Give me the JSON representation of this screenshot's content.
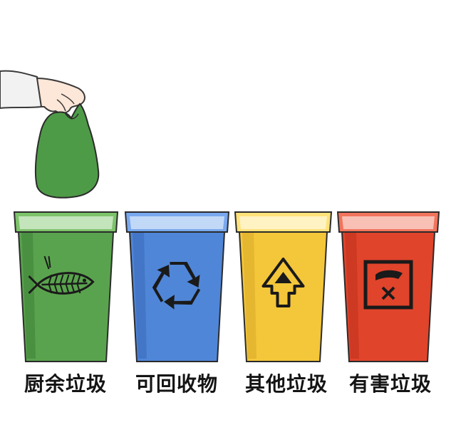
{
  "bins": [
    {
      "id": "kitchen",
      "label": "厨余垃圾",
      "icon": "fish-bone-icon",
      "body_color": "#5aa34e",
      "rim_color": "#7dc36a",
      "dark_color": "#2f6e2a"
    },
    {
      "id": "recyclable",
      "label": "可回收物",
      "icon": "recycle-icon",
      "body_color": "#4f86d8",
      "rim_color": "#79a8ee",
      "dark_color": "#2d5aa6"
    },
    {
      "id": "other",
      "label": "其他垃圾",
      "icon": "other-waste-icon",
      "body_color": "#f4c63a",
      "rim_color": "#ffe27a",
      "dark_color": "#c9971d"
    },
    {
      "id": "hazardous",
      "label": "有害垃圾",
      "icon": "hazardous-icon",
      "body_color": "#e0442b",
      "rim_color": "#f2745c",
      "dark_color": "#a82614"
    }
  ],
  "bag_color": "#4e9b47",
  "outline_color": "#2b2b2b"
}
